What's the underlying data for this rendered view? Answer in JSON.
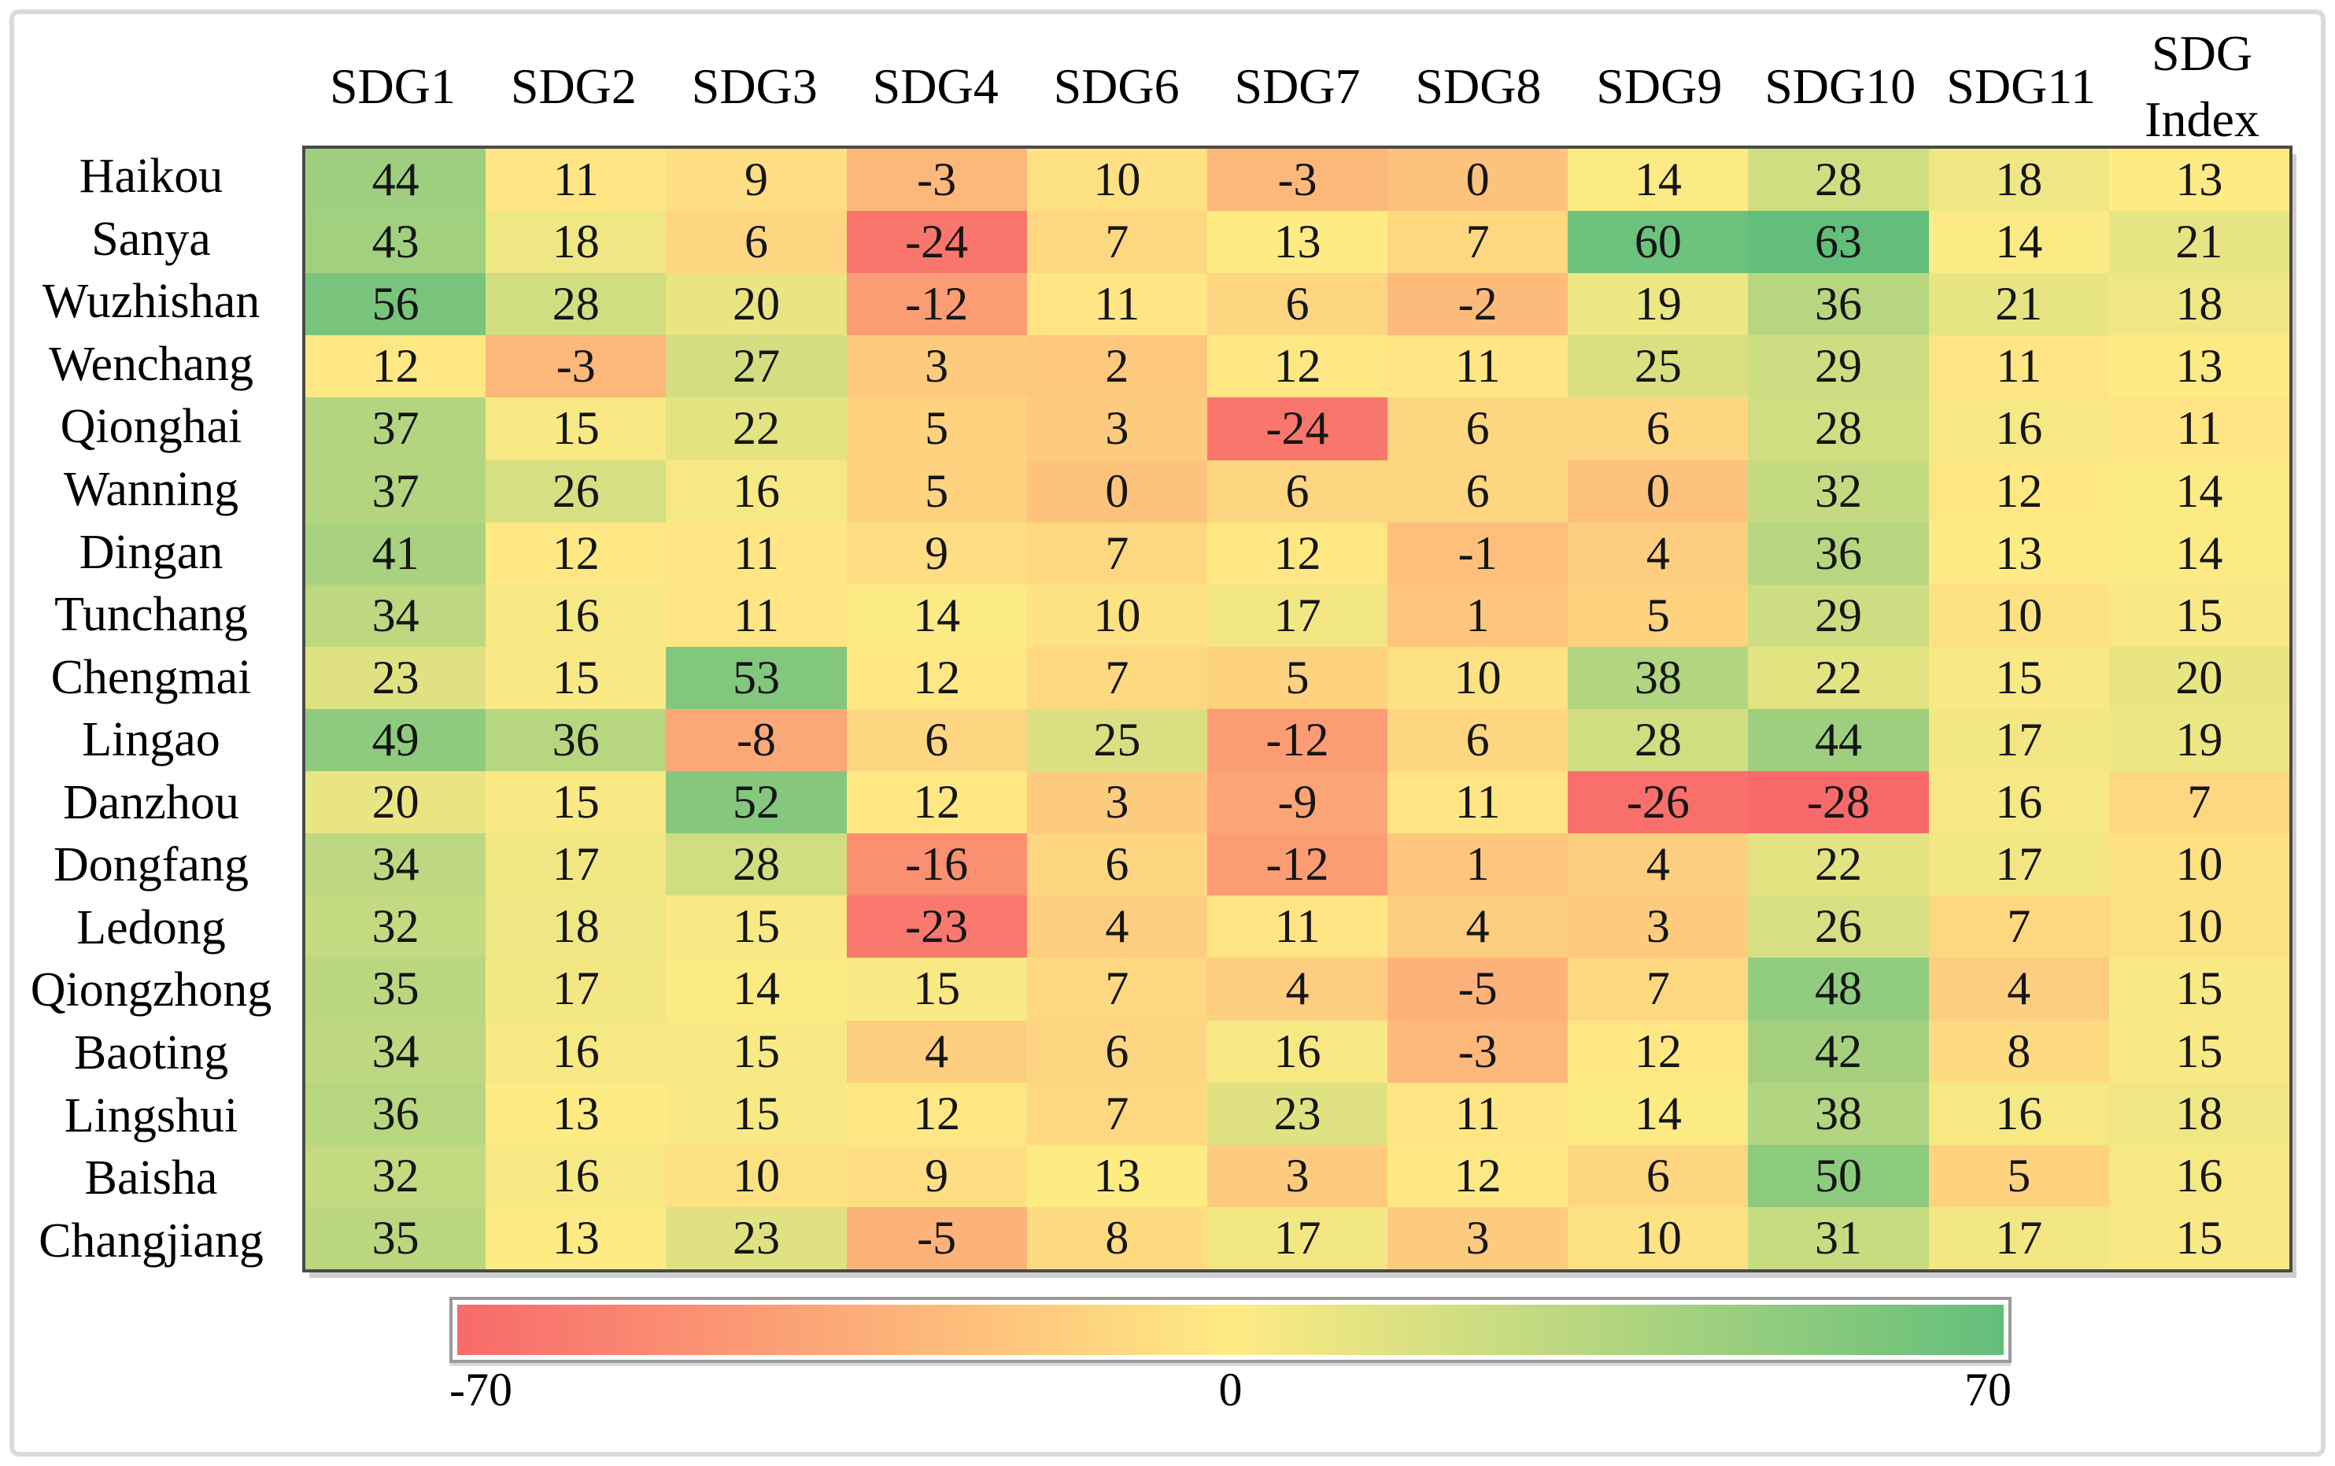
{
  "chart_data": {
    "type": "heatmap",
    "columns": [
      "SDG1",
      "SDG2",
      "SDG3",
      "SDG4",
      "SDG6",
      "SDG7",
      "SDG8",
      "SDG9",
      "SDG10",
      "SDG11",
      "SDG Index"
    ],
    "rows": [
      "Haikou",
      "Sanya",
      "Wuzhishan",
      "Wenchang",
      "Qionghai",
      "Wanning",
      "Dingan",
      "Tunchang",
      "Chengmai",
      "Lingao",
      "Danzhou",
      "Dongfang",
      "Ledong",
      "Qiongzhong",
      "Baoting",
      "Lingshui",
      "Baisha",
      "Changjiang"
    ],
    "values": [
      [
        44,
        11,
        9,
        -3,
        10,
        -3,
        0,
        14,
        28,
        18,
        13
      ],
      [
        43,
        18,
        6,
        -24,
        7,
        13,
        7,
        60,
        63,
        14,
        21
      ],
      [
        56,
        28,
        20,
        -12,
        11,
        6,
        -2,
        19,
        36,
        21,
        18
      ],
      [
        12,
        -3,
        27,
        3,
        2,
        12,
        11,
        25,
        29,
        11,
        13
      ],
      [
        37,
        15,
        22,
        5,
        3,
        -24,
        6,
        6,
        28,
        16,
        11
      ],
      [
        37,
        26,
        16,
        5,
        0,
        6,
        6,
        0,
        32,
        12,
        14
      ],
      [
        41,
        12,
        11,
        9,
        7,
        12,
        -1,
        4,
        36,
        13,
        14
      ],
      [
        34,
        16,
        11,
        14,
        10,
        17,
        1,
        5,
        29,
        10,
        15
      ],
      [
        23,
        15,
        53,
        12,
        7,
        5,
        10,
        38,
        22,
        15,
        20
      ],
      [
        49,
        36,
        -8,
        6,
        25,
        -12,
        6,
        28,
        44,
        17,
        19
      ],
      [
        20,
        15,
        52,
        12,
        3,
        -9,
        11,
        -26,
        -28,
        16,
        7
      ],
      [
        34,
        17,
        28,
        -16,
        6,
        -12,
        1,
        4,
        22,
        17,
        10
      ],
      [
        32,
        18,
        15,
        -23,
        4,
        11,
        4,
        3,
        26,
        7,
        10
      ],
      [
        35,
        17,
        14,
        15,
        7,
        4,
        -5,
        7,
        48,
        4,
        15
      ],
      [
        34,
        16,
        15,
        4,
        6,
        16,
        -3,
        12,
        42,
        8,
        15
      ],
      [
        36,
        13,
        15,
        12,
        7,
        23,
        11,
        14,
        38,
        16,
        18
      ],
      [
        32,
        16,
        10,
        9,
        13,
        3,
        12,
        6,
        50,
        5,
        16
      ],
      [
        35,
        13,
        23,
        -5,
        8,
        17,
        3,
        10,
        31,
        17,
        15
      ]
    ],
    "colorbar": {
      "min_label": "-70",
      "mid_label": "0",
      "max_label": "70",
      "axis_range": [
        -70,
        70
      ],
      "min_color": "#F8696B",
      "mid_color": "#FFEB84",
      "max_color": "#63BE7B",
      "position": "bottom"
    },
    "title": "",
    "grid": false,
    "legend_position": "bottom"
  }
}
